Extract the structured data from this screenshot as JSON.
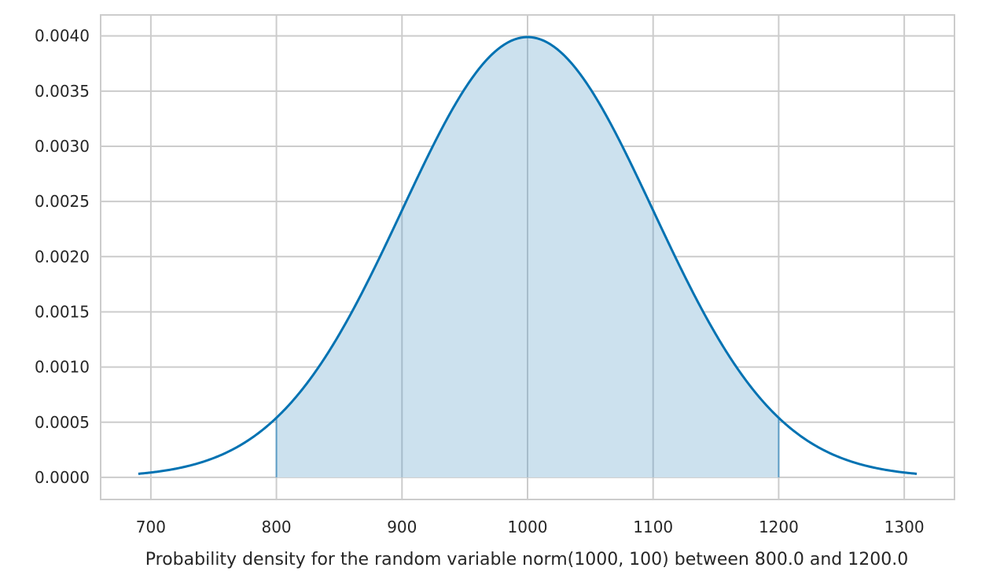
{
  "chart_data": {
    "type": "area",
    "title": "",
    "xlabel": "Probability density for the random variable norm(1000, 100) between 800.0 and 1200.0",
    "ylabel": "",
    "distribution": {
      "name": "norm",
      "mean": 1000,
      "sd": 100
    },
    "curve_range": [
      690,
      1310
    ],
    "shaded_range": [
      800.0,
      1200.0
    ],
    "xlim": [
      660,
      1340
    ],
    "ylim": [
      -0.0002,
      0.00419
    ],
    "x_ticks": [
      700,
      800,
      900,
      1000,
      1100,
      1200,
      1300
    ],
    "x_tick_labels": [
      "700",
      "800",
      "900",
      "1000",
      "1100",
      "1200",
      "1300"
    ],
    "y_ticks": [
      0,
      0.0005,
      0.001,
      0.0015,
      0.002,
      0.0025,
      0.003,
      0.0035,
      0.004
    ],
    "y_tick_labels": [
      "0.0000",
      "0.0005",
      "0.0010",
      "0.0015",
      "0.0020",
      "0.0025",
      "0.0030",
      "0.0035",
      "0.0040"
    ],
    "grid": true,
    "colors": {
      "line": "#0072b2",
      "fill": "#cce1ee",
      "fill_edge": "#5b9bc4",
      "grid": "#cccccc",
      "frame": "#cccccc"
    }
  }
}
